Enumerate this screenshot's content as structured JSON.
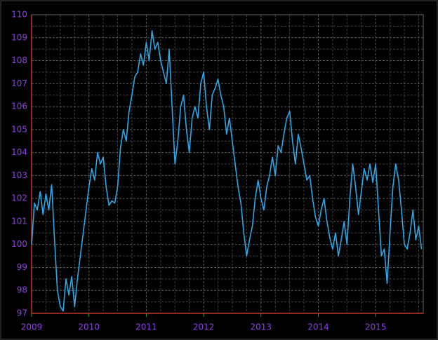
{
  "chart_data": {
    "type": "line",
    "x": [
      2009.0,
      2009.05,
      2009.1,
      2009.15,
      2009.2,
      2009.25,
      2009.3,
      2009.35,
      2009.4,
      2009.45,
      2009.5,
      2009.55,
      2009.6,
      2009.65,
      2009.7,
      2009.75,
      2009.8,
      2009.85,
      2009.9,
      2009.95,
      2010.0,
      2010.05,
      2010.1,
      2010.15,
      2010.2,
      2010.25,
      2010.3,
      2010.35,
      2010.4,
      2010.45,
      2010.5,
      2010.55,
      2010.6,
      2010.65,
      2010.7,
      2010.75,
      2010.8,
      2010.85,
      2010.9,
      2010.95,
      2011.0,
      2011.05,
      2011.1,
      2011.15,
      2011.2,
      2011.25,
      2011.3,
      2011.35,
      2011.4,
      2011.45,
      2011.5,
      2011.55,
      2011.6,
      2011.65,
      2011.7,
      2011.75,
      2011.8,
      2011.85,
      2011.9,
      2011.95,
      2012.0,
      2012.05,
      2012.1,
      2012.15,
      2012.2,
      2012.25,
      2012.3,
      2012.35,
      2012.4,
      2012.45,
      2012.5,
      2012.55,
      2012.6,
      2012.65,
      2012.7,
      2012.75,
      2012.8,
      2012.85,
      2012.9,
      2012.95,
      2013.0,
      2013.05,
      2013.1,
      2013.15,
      2013.2,
      2013.25,
      2013.3,
      2013.35,
      2013.4,
      2013.45,
      2013.5,
      2013.55,
      2013.6,
      2013.65,
      2013.7,
      2013.75,
      2013.8,
      2013.85,
      2013.9,
      2013.95,
      2014.0,
      2014.05,
      2014.1,
      2014.15,
      2014.2,
      2014.25,
      2014.3,
      2014.35,
      2014.4,
      2014.45,
      2014.5,
      2014.55,
      2014.6,
      2014.65,
      2014.7,
      2014.75,
      2014.8,
      2014.85,
      2014.9,
      2014.95,
      2015.0,
      2015.05,
      2015.1,
      2015.15,
      2015.2,
      2015.25,
      2015.3,
      2015.35,
      2015.4,
      2015.45,
      2015.5,
      2015.55,
      2015.6,
      2015.65,
      2015.7,
      2015.75,
      2015.8
    ],
    "series": [
      {
        "color": "#2ea6e6",
        "values": [
          100.0,
          101.8,
          101.5,
          102.3,
          101.3,
          102.2,
          101.5,
          102.6,
          100.2,
          98.0,
          97.3,
          97.1,
          98.5,
          97.8,
          98.6,
          97.3,
          98.5,
          99.5,
          100.5,
          101.5,
          102.5,
          103.3,
          102.8,
          104.0,
          103.5,
          103.8,
          102.5,
          101.7,
          101.9,
          101.8,
          102.5,
          104.2,
          105.0,
          104.5,
          105.8,
          106.5,
          107.3,
          107.5,
          108.3,
          107.8,
          108.8,
          108.0,
          109.3,
          108.5,
          108.8,
          108.0,
          107.5,
          107.0,
          108.5,
          106.0,
          103.5,
          104.5,
          106.0,
          106.5,
          105.0,
          104.0,
          105.5,
          106.0,
          105.5,
          107.0,
          107.5,
          106.0,
          105.0,
          106.5,
          106.8,
          107.2,
          106.5,
          106.0,
          104.8,
          105.5,
          104.5,
          103.5,
          102.5,
          101.8,
          100.5,
          99.5,
          100.2,
          100.8,
          102.0,
          102.8,
          102.0,
          101.5,
          102.5,
          103.0,
          103.8,
          103.0,
          104.3,
          104.0,
          104.8,
          105.5,
          105.8,
          104.5,
          103.5,
          104.8,
          104.2,
          103.5,
          102.8,
          103.0,
          102.0,
          101.2,
          100.8,
          101.5,
          102.0,
          101.0,
          100.3,
          99.8,
          100.5,
          99.5,
          100.2,
          101.0,
          100.0,
          102.0,
          103.5,
          102.5,
          101.3,
          102.3,
          103.3,
          102.8,
          103.5,
          102.7,
          103.5,
          101.5,
          99.5,
          99.8,
          98.3,
          100.5,
          102.5,
          103.5,
          102.8,
          101.5,
          100.0,
          99.8,
          100.5,
          101.5,
          100.2,
          100.8,
          99.8
        ]
      }
    ],
    "xlim": [
      2009.0,
      2015.83
    ],
    "xticks": [
      2009,
      2010,
      2011,
      2012,
      2013,
      2014,
      2015
    ],
    "ylim": [
      97,
      110
    ],
    "yticks": [
      97,
      98,
      99,
      100,
      101,
      102,
      103,
      104,
      105,
      106,
      107,
      108,
      109,
      110
    ],
    "grid": true
  }
}
